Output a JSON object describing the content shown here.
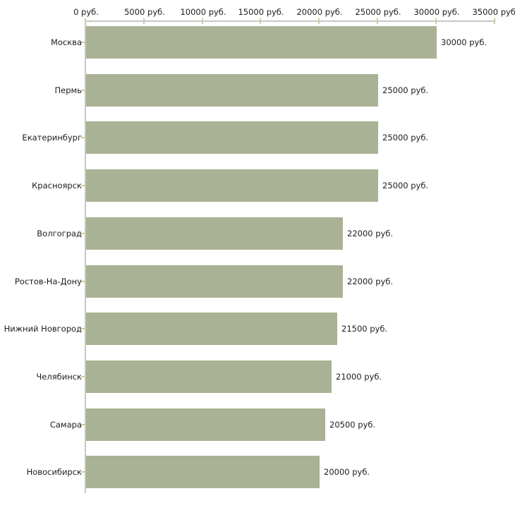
{
  "chart_data": {
    "type": "bar",
    "orientation": "horizontal",
    "title": "",
    "categories": [
      "Москва",
      "Пермь",
      "Екатеринбург",
      "Красноярск",
      "Волгоград",
      "Ростов-На-Дону",
      "Нижний Новгород",
      "Челябинск",
      "Самара",
      "Новосибирск"
    ],
    "values": [
      30000,
      25000,
      25000,
      25000,
      22000,
      22000,
      21500,
      21000,
      20500,
      20000
    ],
    "value_labels": [
      "30000 руб.",
      "25000 руб.",
      "25000 руб.",
      "25000 руб.",
      "22000 руб.",
      "22000 руб.",
      "21500 руб.",
      "21000 руб.",
      "20500 руб.",
      "20000 руб."
    ],
    "x_axis": {
      "position": "top",
      "range": [
        0,
        35000
      ],
      "ticks": [
        0,
        5000,
        10000,
        15000,
        20000,
        25000,
        30000,
        35000
      ],
      "tick_labels": [
        "0 руб.",
        "5000 руб.",
        "10000 руб.",
        "15000 руб.",
        "20000 руб.",
        "25000 руб.",
        "30000 руб.",
        "35000 руб."
      ]
    },
    "grid": false,
    "legend": false,
    "colors": {
      "bar_fill": "#a9b294",
      "axis_line": "#c6c6c6",
      "tick_mark": "#cdc9a4",
      "text": "#1c1c1c",
      "background": "#ffffff"
    }
  }
}
